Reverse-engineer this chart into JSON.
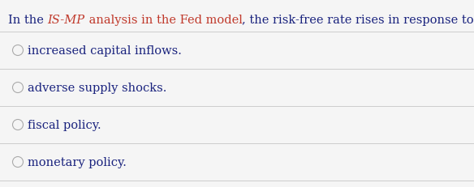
{
  "question_parts": [
    {
      "text": "In the ",
      "color": "#1a237e",
      "italic": false,
      "bold": false
    },
    {
      "text": "IS-MP",
      "color": "#c0392b",
      "italic": true,
      "bold": false
    },
    {
      "text": " analysis in the Fed model",
      "color": "#c0392b",
      "italic": false,
      "bold": false
    },
    {
      "text": ", the risk-free rate rises in response to:",
      "color": "#1a237e",
      "italic": false,
      "bold": false
    }
  ],
  "options": [
    "increased capital inflows.",
    "adverse supply shocks.",
    "fiscal policy.",
    "monetary policy."
  ],
  "option_color": "#1a237e",
  "background_color": "#f5f5f5",
  "divider_color": "#cccccc",
  "circle_color": "#aaaaaa",
  "font_size": 10.5,
  "question_font_size": 10.5,
  "fig_width": 5.84,
  "fig_height": 2.32,
  "dpi": 100
}
